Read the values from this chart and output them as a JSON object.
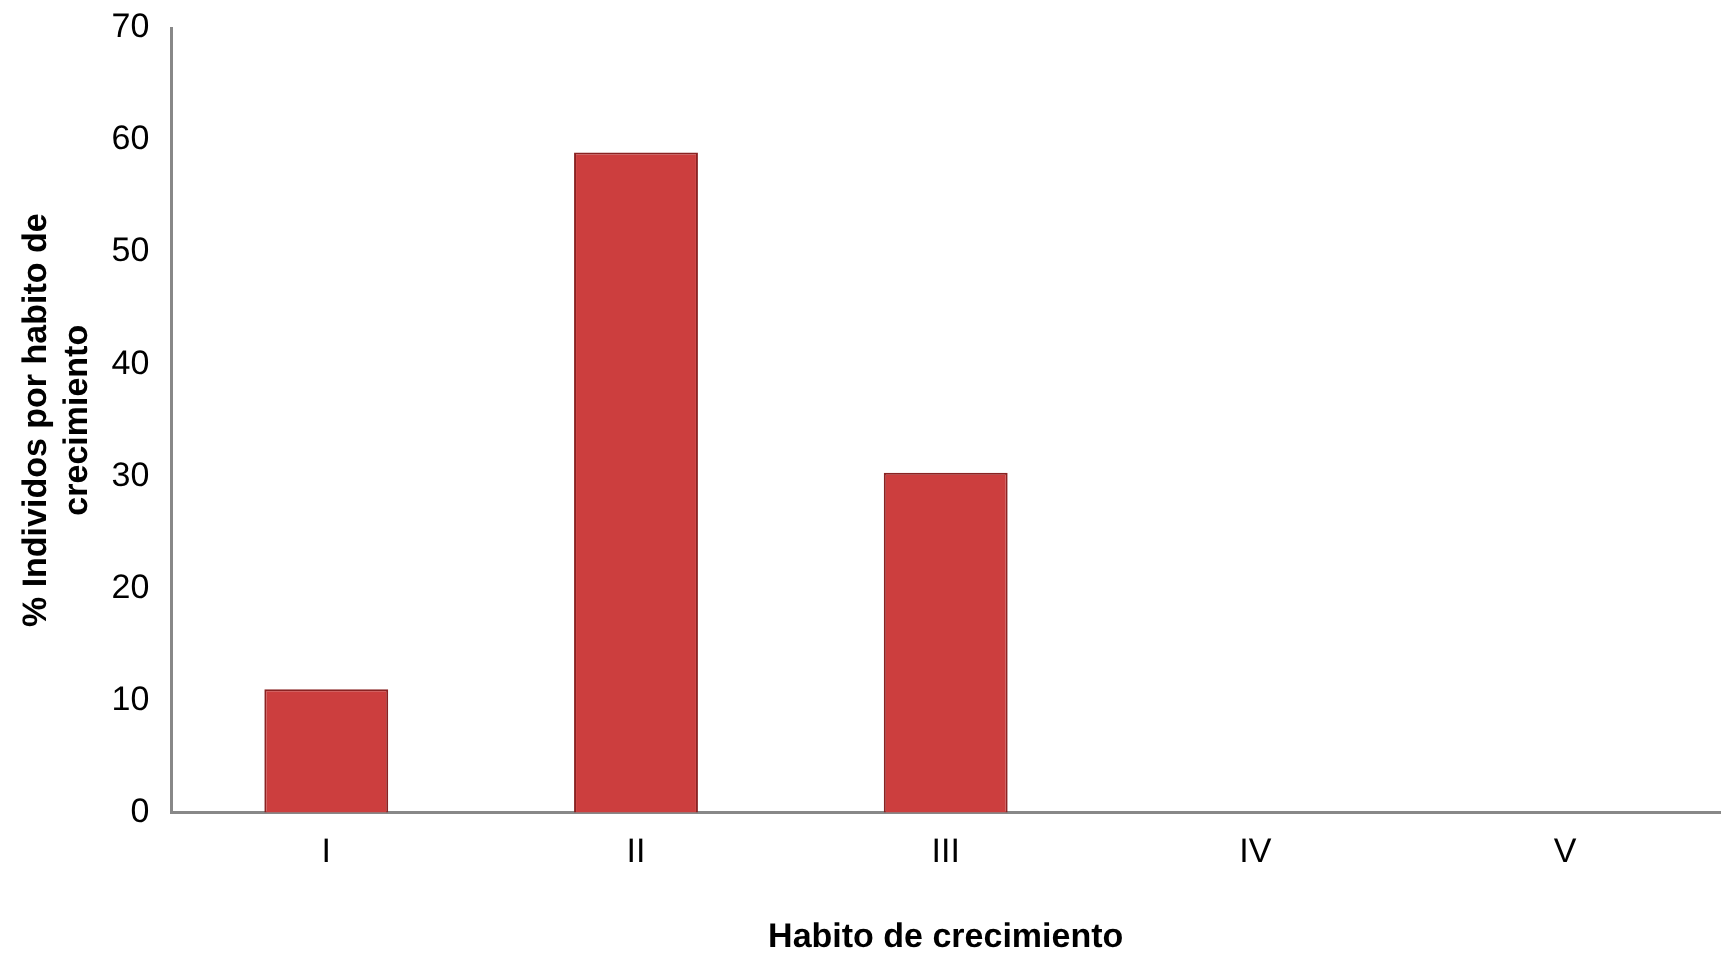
{
  "chart_data": {
    "type": "bar",
    "xlabel": "Habito de crecimiento",
    "ylabel": "% Individos por habito de crecimiento",
    "categories": [
      "I",
      "II",
      "III",
      "IV",
      "V"
    ],
    "values": [
      11,
      58.9,
      30.3,
      0,
      0
    ],
    "color": "#cc3e3e",
    "ylim": [
      0,
      70
    ],
    "yticks": [
      0,
      10,
      20,
      30,
      40,
      50,
      60,
      70
    ],
    "grid": false,
    "legend": false
  }
}
